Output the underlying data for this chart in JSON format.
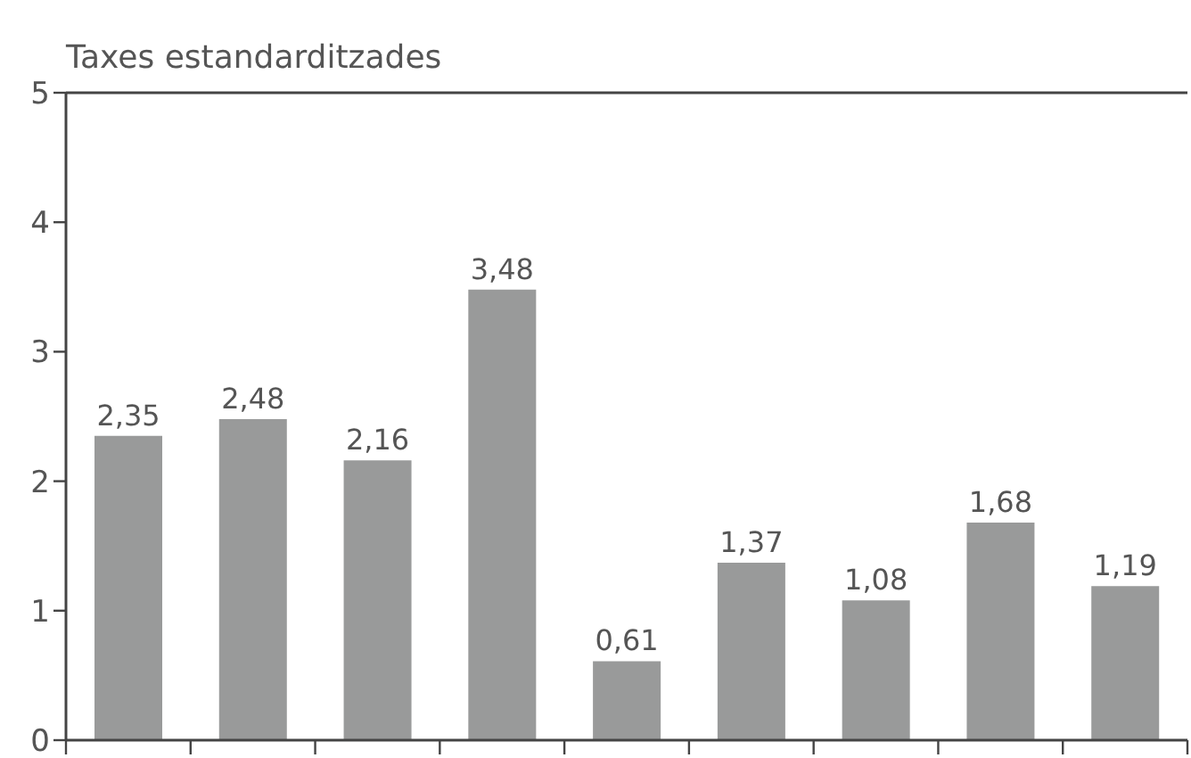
{
  "chart_data": {
    "type": "bar",
    "ylabel": "Taxes estandarditzades",
    "categories": [
      null,
      null,
      null,
      null,
      null,
      null,
      null,
      null,
      null
    ],
    "values": [
      2.35,
      2.48,
      2.16,
      3.48,
      0.61,
      1.37,
      1.08,
      1.68,
      1.19
    ],
    "value_labels": [
      "2,35",
      "2,48",
      "2,16",
      "3,48",
      "0,61",
      "1,37",
      "1,08",
      "1,68",
      "1,19"
    ],
    "color": "#999a9a",
    "ylim": [
      0,
      5
    ],
    "yticks": [
      0,
      1,
      2,
      3,
      4,
      5
    ],
    "tick_labels": "y"
  }
}
